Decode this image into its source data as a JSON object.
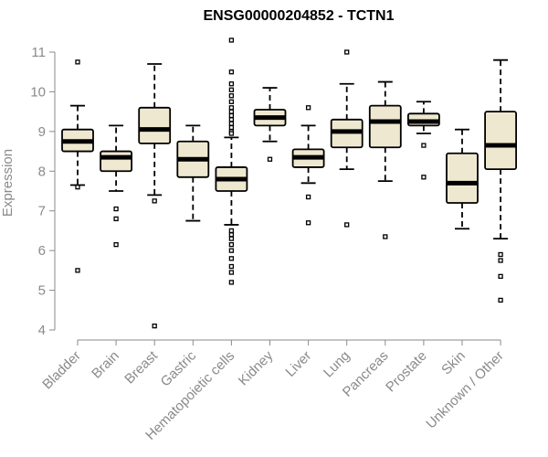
{
  "chart_data": {
    "type": "boxplot",
    "title": "ENSG00000204852 - TCTN1",
    "xlabel": "",
    "ylabel": "Expression",
    "ylim": [
      4,
      11
    ],
    "yticks": [
      4,
      5,
      6,
      7,
      8,
      9,
      10,
      11
    ],
    "grid": false,
    "legend": "none",
    "colors": {
      "box_fill": "#efe8d0",
      "box_stroke": "#000000",
      "axis": "#8a8a8a"
    },
    "categories": [
      "Bladder",
      "Brain",
      "Breast",
      "Gastric",
      "Hematopoietic cells",
      "Kidney",
      "Liver",
      "Lung",
      "Pancreas",
      "Prostate",
      "Skin",
      "Unknown / Other"
    ],
    "boxes": [
      {
        "category": "Bladder",
        "whisker_low": 7.65,
        "q1": 8.5,
        "median": 8.75,
        "q3": 9.05,
        "whisker_high": 9.65,
        "outliers": [
          10.75,
          7.6,
          5.5
        ]
      },
      {
        "category": "Brain",
        "whisker_low": 7.5,
        "q1": 8.0,
        "median": 8.35,
        "q3": 8.5,
        "whisker_high": 9.15,
        "outliers": [
          7.05,
          6.8,
          6.15
        ]
      },
      {
        "category": "Breast",
        "whisker_low": 7.4,
        "q1": 8.7,
        "median": 9.05,
        "q3": 9.6,
        "whisker_high": 10.7,
        "outliers": [
          7.25,
          4.1
        ]
      },
      {
        "category": "Gastric",
        "whisker_low": 6.75,
        "q1": 7.85,
        "median": 8.3,
        "q3": 8.75,
        "whisker_high": 9.15,
        "outliers": []
      },
      {
        "category": "Hematopoietic cells",
        "whisker_low": 6.65,
        "q1": 7.5,
        "median": 7.8,
        "q3": 8.1,
        "whisker_high": 8.85,
        "outliers": [
          11.3,
          10.5,
          10.2,
          10.05,
          9.9,
          9.75,
          9.6,
          9.5,
          9.4,
          9.3,
          9.2,
          9.1,
          9.0,
          8.95,
          6.5,
          6.4,
          6.3,
          6.15,
          6.0,
          5.8,
          5.6,
          5.45,
          5.2
        ]
      },
      {
        "category": "Kidney",
        "whisker_low": 8.75,
        "q1": 9.15,
        "median": 9.35,
        "q3": 9.55,
        "whisker_high": 10.1,
        "outliers": [
          8.3
        ]
      },
      {
        "category": "Liver",
        "whisker_low": 7.7,
        "q1": 8.1,
        "median": 8.35,
        "q3": 8.55,
        "whisker_high": 9.15,
        "outliers": [
          9.6,
          7.35,
          6.7
        ]
      },
      {
        "category": "Lung",
        "whisker_low": 8.05,
        "q1": 8.6,
        "median": 9.0,
        "q3": 9.3,
        "whisker_high": 10.2,
        "outliers": [
          11.0,
          6.65
        ]
      },
      {
        "category": "Pancreas",
        "whisker_low": 7.75,
        "q1": 8.6,
        "median": 9.25,
        "q3": 9.65,
        "whisker_high": 10.25,
        "outliers": [
          6.35
        ]
      },
      {
        "category": "Prostate",
        "whisker_low": 8.95,
        "q1": 9.15,
        "median": 9.25,
        "q3": 9.45,
        "whisker_high": 9.75,
        "outliers": [
          8.65,
          7.85
        ]
      },
      {
        "category": "Skin",
        "whisker_low": 6.55,
        "q1": 7.2,
        "median": 7.7,
        "q3": 8.45,
        "whisker_high": 9.05,
        "outliers": []
      },
      {
        "category": "Unknown / Other",
        "whisker_low": 6.3,
        "q1": 8.05,
        "median": 8.65,
        "q3": 9.5,
        "whisker_high": 10.8,
        "outliers": [
          5.9,
          5.75,
          5.35,
          4.75
        ]
      }
    ]
  }
}
